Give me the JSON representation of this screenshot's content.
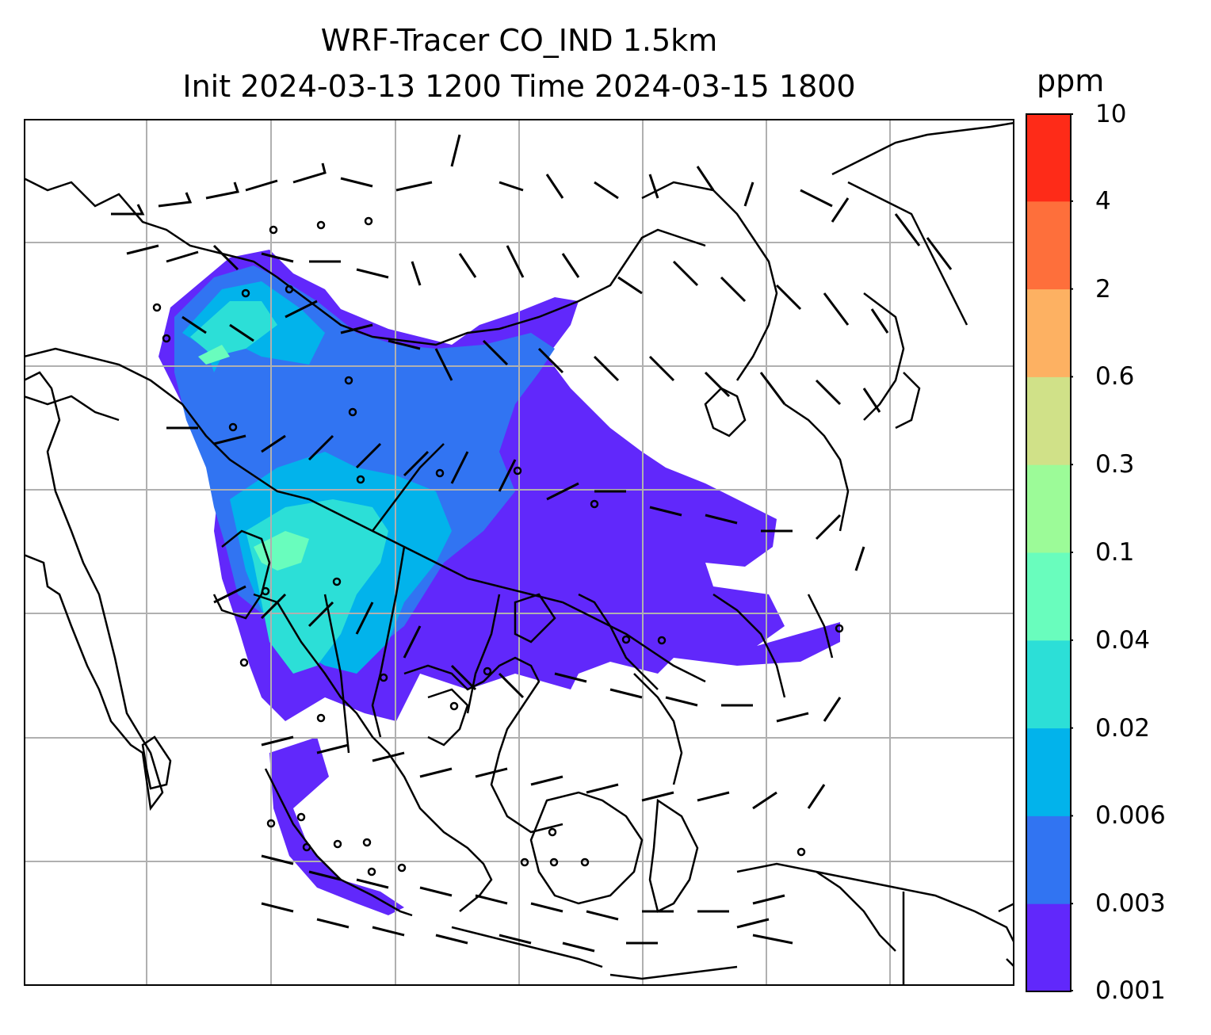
{
  "title": {
    "line1": "WRF-Tracer CO_IND 1.5km",
    "line2": "Init 2024-03-13 1200 Time 2024-03-15 1800"
  },
  "colorbar": {
    "unit": "ppm",
    "levels": [
      "0.001",
      "0.003",
      "0.006",
      "0.02",
      "0.04",
      "0.1",
      "0.3",
      "0.6",
      "2",
      "4",
      "10"
    ],
    "colors": [
      "#6128fb",
      "#3174f2",
      "#02b3eb",
      "#2cdfd7",
      "#69fdbd",
      "#9cfb98",
      "#d0e188",
      "#fdb162",
      "#fe6f3b",
      "#fe2b18"
    ]
  },
  "map": {
    "tracer": "CO_IND",
    "features": [
      "coastlines",
      "country-borders",
      "lat-lon-gridlines",
      "wind-barbs",
      "calm-wind-circles"
    ]
  }
}
